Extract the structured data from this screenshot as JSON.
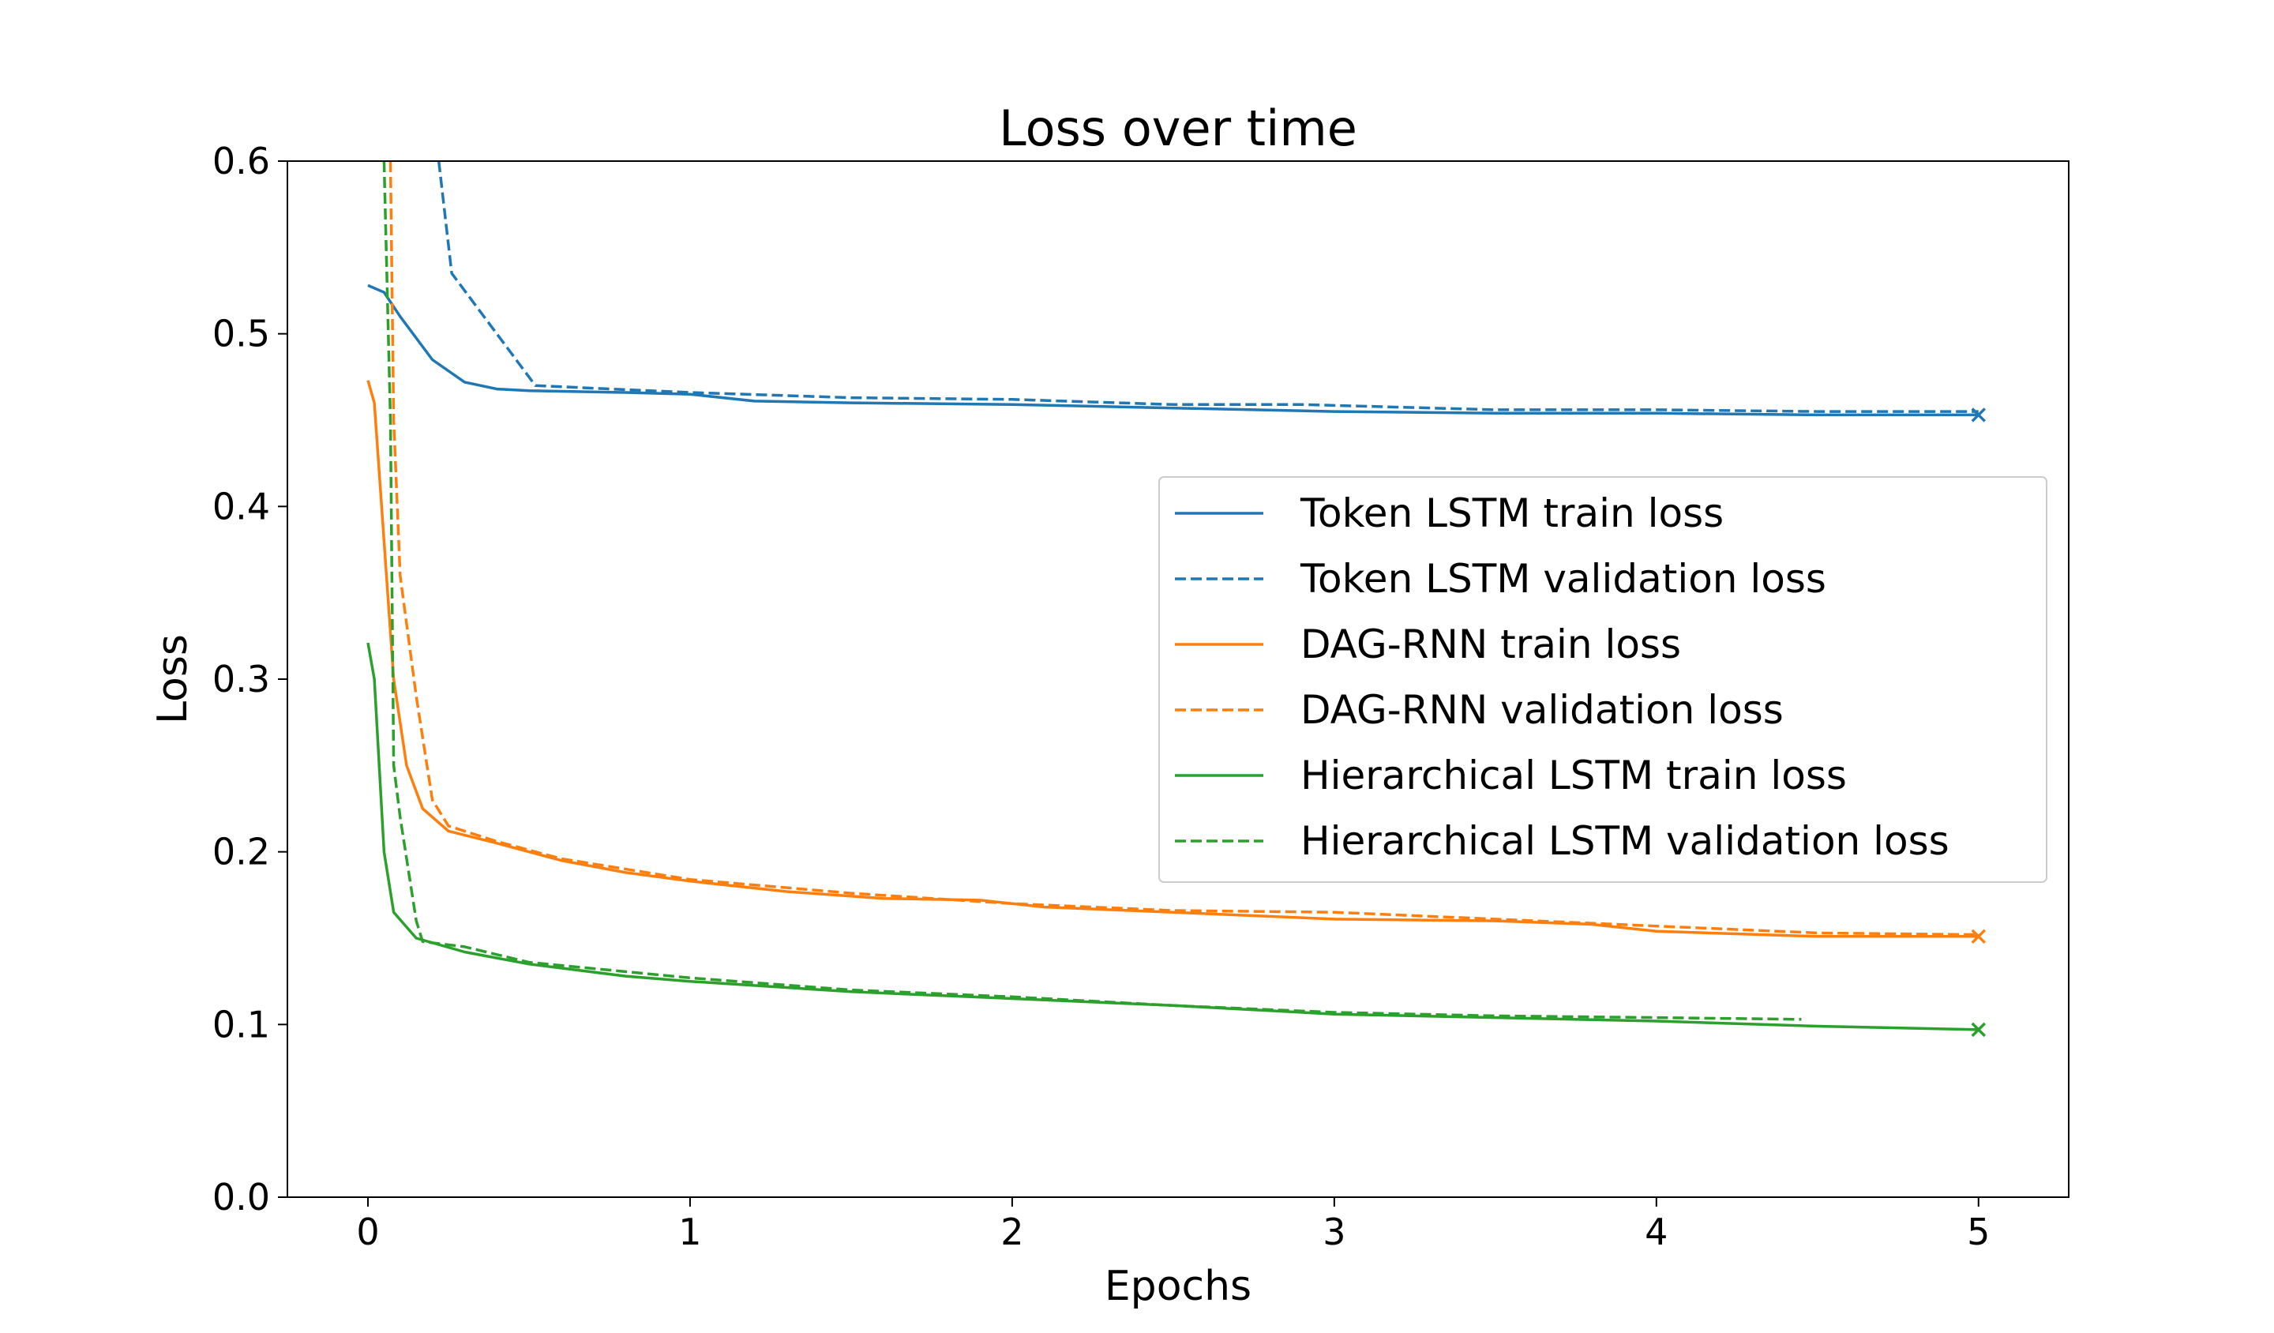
{
  "chart_data": {
    "type": "line",
    "title": "Loss over time",
    "xlabel": "Epochs",
    "ylabel": "Loss",
    "xlim": [
      -0.25,
      5.28
    ],
    "ylim": [
      0.0,
      0.6
    ],
    "xticks": [
      "0",
      "1",
      "2",
      "3",
      "4",
      "5"
    ],
    "yticks": [
      "0.0",
      "0.1",
      "0.2",
      "0.3",
      "0.4",
      "0.5",
      "0.6"
    ],
    "grid": false,
    "legend_placement": "center-right",
    "series": [
      {
        "name": "Token LSTM train loss",
        "color": "#1f77b4",
        "dash": false,
        "end_marker": "x",
        "x": [
          0,
          0.05,
          0.1,
          0.2,
          0.3,
          0.4,
          0.5,
          0.8,
          1.0,
          1.2,
          1.5,
          2,
          2.5,
          3,
          3.5,
          4,
          4.5,
          5
        ],
        "y": [
          0.528,
          0.524,
          0.51,
          0.485,
          0.472,
          0.468,
          0.467,
          0.466,
          0.465,
          0.461,
          0.46,
          0.459,
          0.457,
          0.455,
          0.454,
          0.454,
          0.453,
          0.453
        ]
      },
      {
        "name": "Token LSTM validation loss",
        "color": "#1f77b4",
        "dash": true,
        "x": [
          0.22,
          0.26,
          0.52,
          1,
          1.5,
          2,
          2.5,
          2.9,
          3.5,
          4,
          4.5,
          5
        ],
        "y": [
          0.6,
          0.535,
          0.47,
          0.466,
          0.463,
          0.462,
          0.459,
          0.459,
          0.456,
          0.456,
          0.455,
          0.455
        ]
      },
      {
        "name": "DAG-RNN train loss",
        "color": "#ff7f0e",
        "dash": false,
        "end_marker": "x",
        "x": [
          0,
          0.02,
          0.05,
          0.08,
          0.12,
          0.17,
          0.25,
          0.4,
          0.6,
          0.8,
          1,
          1.3,
          1.6,
          1.9,
          2.1,
          2.5,
          3,
          3.5,
          3.8,
          4,
          4.5,
          5
        ],
        "y": [
          0.473,
          0.46,
          0.38,
          0.3,
          0.25,
          0.225,
          0.212,
          0.205,
          0.195,
          0.188,
          0.183,
          0.177,
          0.173,
          0.172,
          0.168,
          0.165,
          0.161,
          0.16,
          0.158,
          0.154,
          0.151,
          0.151
        ]
      },
      {
        "name": "DAG-RNN validation loss",
        "color": "#ff7f0e",
        "dash": true,
        "x": [
          0.07,
          0.08,
          0.1,
          0.15,
          0.2,
          0.25,
          0.4,
          0.6,
          1,
          1.5,
          2,
          2.5,
          3,
          3.5,
          4,
          4.5,
          5
        ],
        "y": [
          0.6,
          0.45,
          0.36,
          0.29,
          0.23,
          0.215,
          0.206,
          0.196,
          0.184,
          0.176,
          0.17,
          0.166,
          0.165,
          0.161,
          0.157,
          0.153,
          0.152
        ]
      },
      {
        "name": "Hierarchical LSTM train loss",
        "color": "#2ca02c",
        "dash": false,
        "end_marker": "x",
        "x": [
          0,
          0.02,
          0.05,
          0.08,
          0.15,
          0.3,
          0.5,
          0.8,
          1,
          1.5,
          2,
          2.5,
          3,
          3.5,
          4,
          4.5,
          5
        ],
        "y": [
          0.321,
          0.3,
          0.2,
          0.165,
          0.15,
          0.142,
          0.135,
          0.128,
          0.125,
          0.119,
          0.115,
          0.111,
          0.106,
          0.104,
          0.102,
          0.099,
          0.097
        ]
      },
      {
        "name": "Hierarchical LSTM validation loss",
        "color": "#2ca02c",
        "dash": true,
        "x": [
          0.05,
          0.07,
          0.08,
          0.1,
          0.15,
          0.17,
          0.3,
          0.5,
          1,
          1.5,
          2,
          2.5,
          3,
          3.5,
          4,
          4.45
        ],
        "y": [
          0.6,
          0.45,
          0.25,
          0.22,
          0.16,
          0.148,
          0.145,
          0.136,
          0.127,
          0.12,
          0.116,
          0.111,
          0.107,
          0.105,
          0.104,
          0.103
        ]
      }
    ]
  }
}
